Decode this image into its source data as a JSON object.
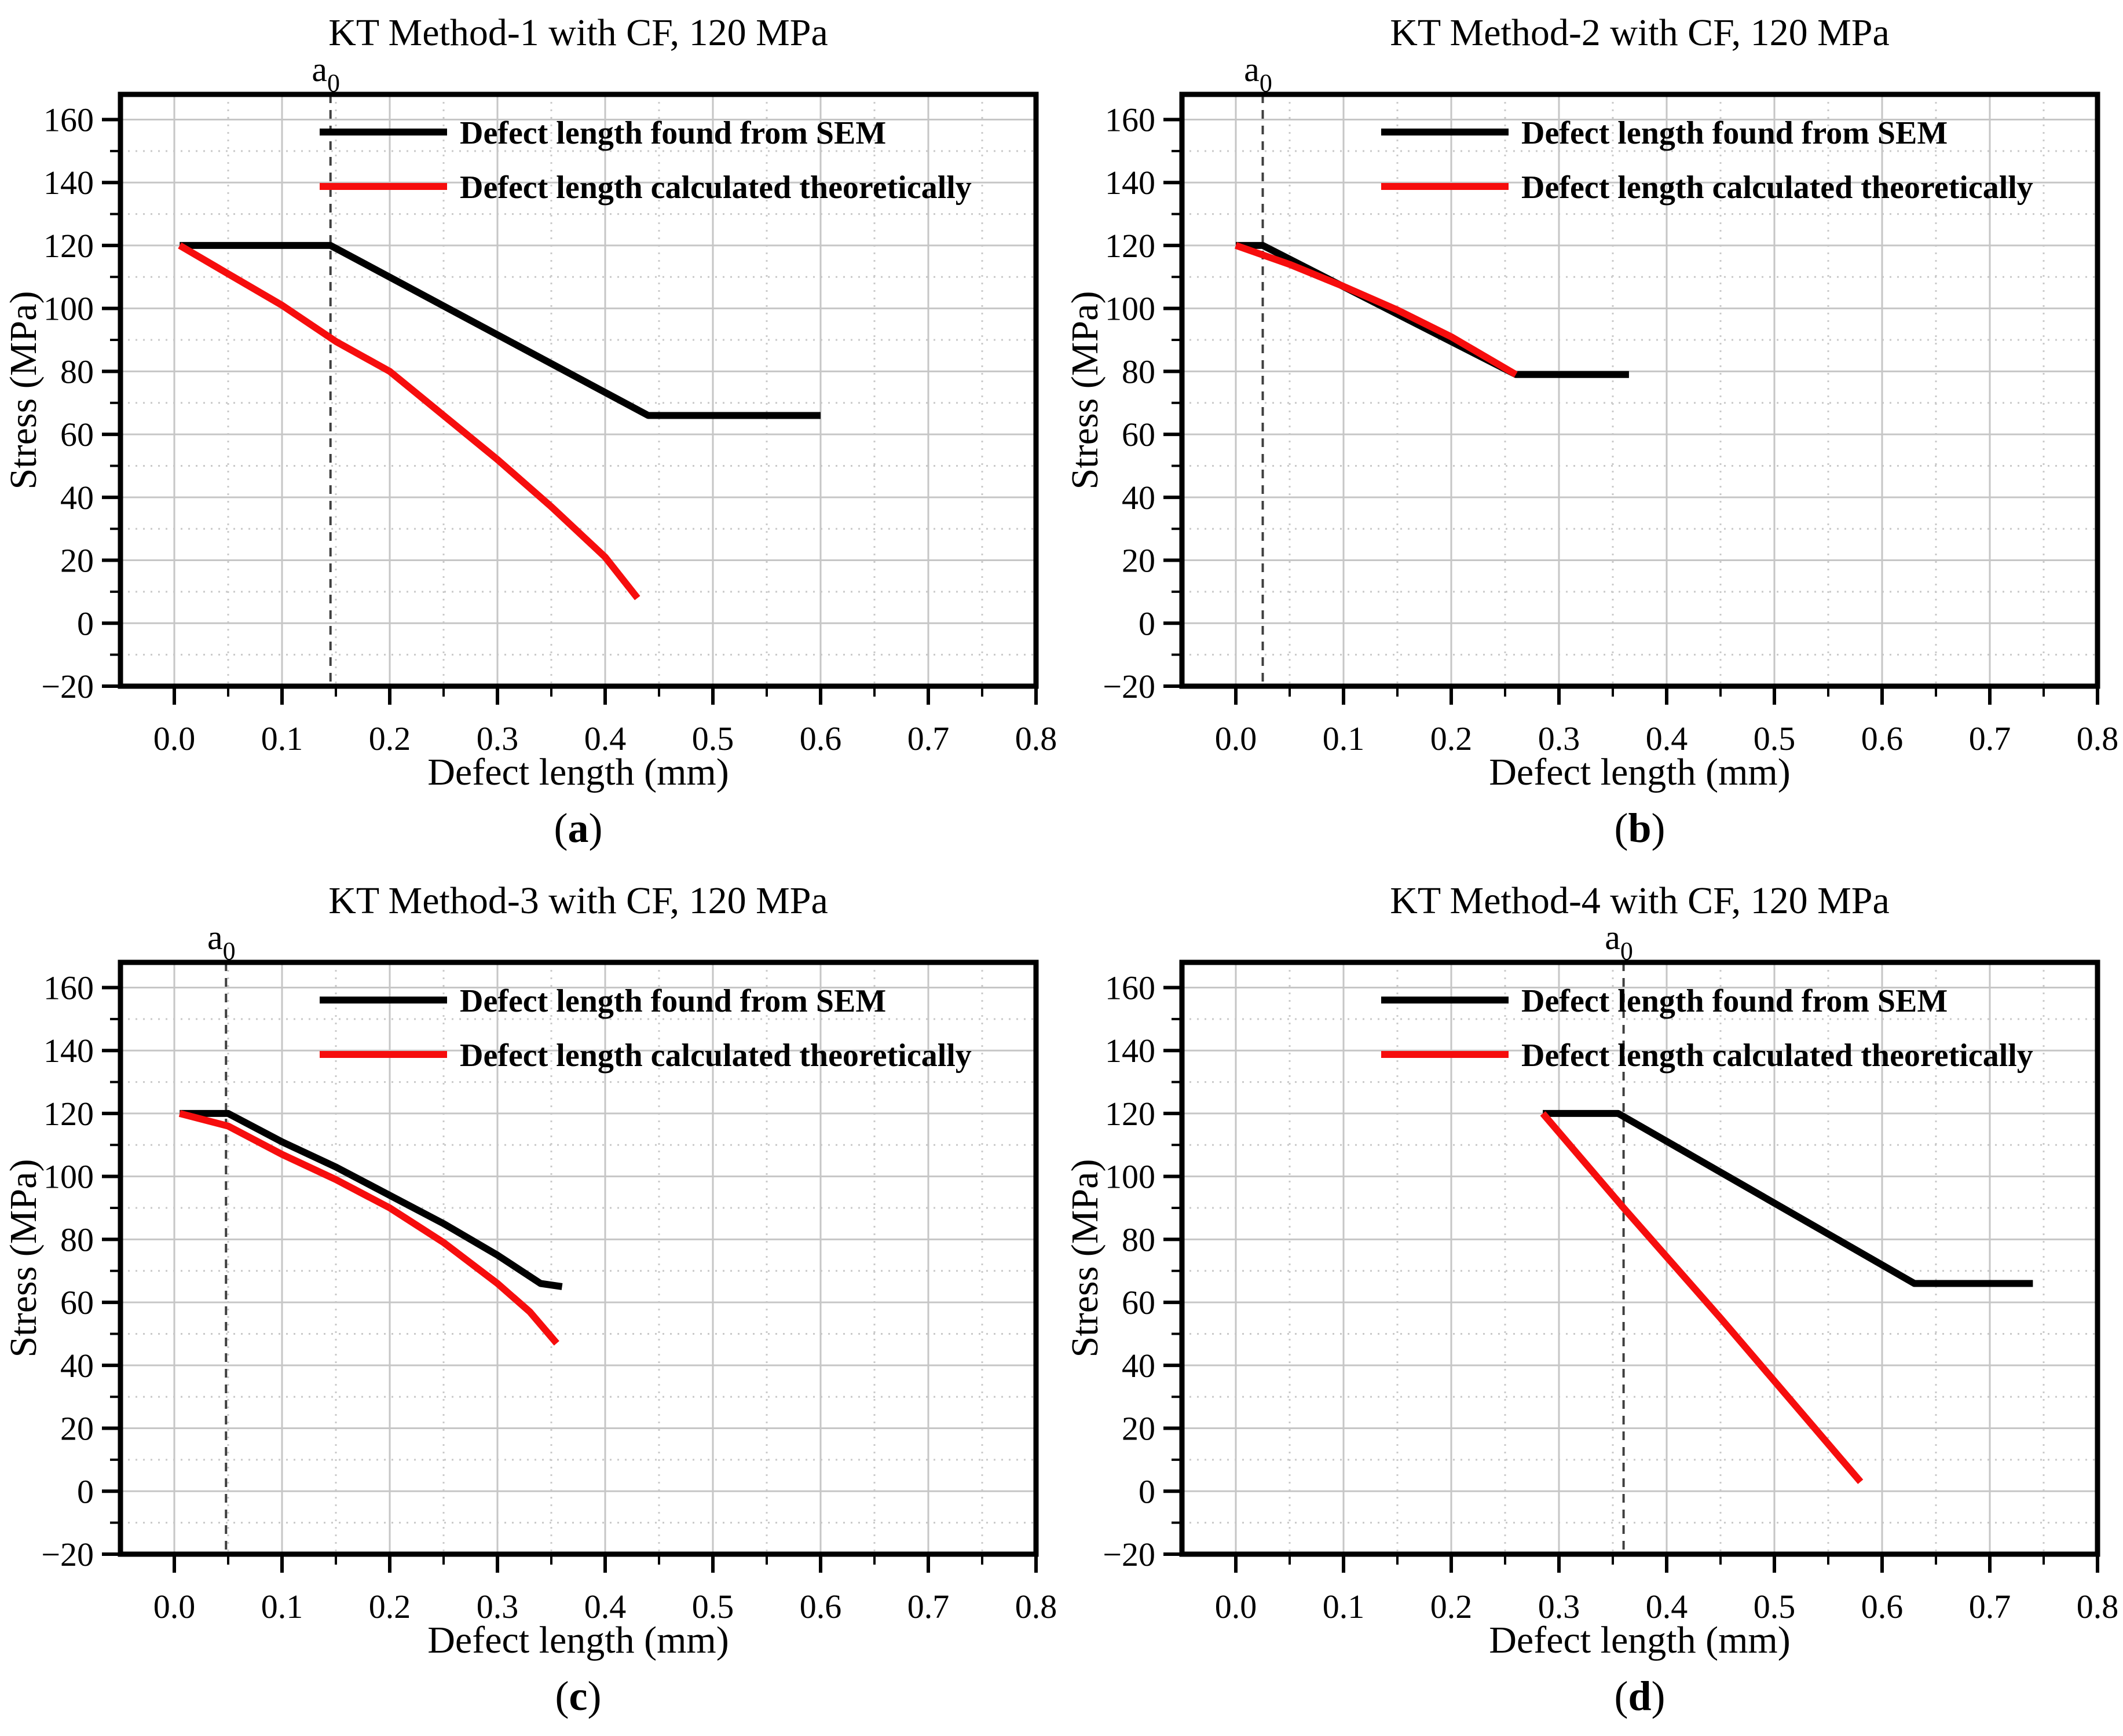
{
  "figure": {
    "ylabel": "Stress (MPa)",
    "xlabel": "Defect length (mm)",
    "legend": [
      "Defect length found from SEM",
      "Defect length calculated theoretically"
    ],
    "a0_annotation": {
      "base": "a",
      "sub": "0"
    }
  },
  "style": {
    "series_sem_color": "#000000",
    "series_theory_color": "#f60d0d",
    "grid_major_color": "#c6c6c6",
    "grid_minor_color": "#c9c9c9",
    "a0_line_color": "#3f3f3f",
    "axis_color": "#000000"
  },
  "chart_data": [
    {
      "type": "line",
      "title": "KT Method-1 with CF, 120 MPa",
      "caption": {
        "open": "(",
        "letter": "a",
        "close": ")"
      },
      "xlabel": "Defect length (mm)",
      "ylabel": "Stress (MPa)",
      "xlim": [
        -0.05,
        0.8
      ],
      "ylim": [
        -20,
        168
      ],
      "grid": true,
      "legend_position": "top-right",
      "xticks": [
        {
          "v": 0.0,
          "label": "0.0"
        },
        {
          "v": 0.1,
          "label": "0.1"
        },
        {
          "v": 0.2,
          "label": "0.2"
        },
        {
          "v": 0.3,
          "label": "0.3"
        },
        {
          "v": 0.4,
          "label": "0.4"
        },
        {
          "v": 0.5,
          "label": "0.5"
        },
        {
          "v": 0.6,
          "label": "0.6"
        },
        {
          "v": 0.7,
          "label": "0.7"
        },
        {
          "v": 0.8,
          "label": "0.8"
        }
      ],
      "yticks": [
        {
          "v": -20,
          "label": "−20"
        },
        {
          "v": 0,
          "label": "0"
        },
        {
          "v": 20,
          "label": "20"
        },
        {
          "v": 40,
          "label": "40"
        },
        {
          "v": 60,
          "label": "60"
        },
        {
          "v": 80,
          "label": "80"
        },
        {
          "v": 100,
          "label": "100"
        },
        {
          "v": 120,
          "label": "120"
        },
        {
          "v": 140,
          "label": "140"
        },
        {
          "v": 160,
          "label": "160"
        }
      ],
      "xminor_step": 0.05,
      "yminor_step": 10,
      "a0": {
        "x": 0.145,
        "base": "a",
        "sub": "0"
      },
      "series": [
        {
          "name": "Defect length found from SEM",
          "color": "#000000",
          "points": [
            [
              0.005,
              120
            ],
            [
              0.145,
              120
            ],
            [
              0.44,
              66
            ],
            [
              0.6,
              66
            ]
          ]
        },
        {
          "name": "Defect length calculated theoretically",
          "color": "#f60d0d",
          "points": [
            [
              0.005,
              120
            ],
            [
              0.05,
              111
            ],
            [
              0.1,
              101
            ],
            [
              0.15,
              89.5
            ],
            [
              0.2,
              80
            ],
            [
              0.25,
              66
            ],
            [
              0.3,
              52
            ],
            [
              0.35,
              37
            ],
            [
              0.4,
              21
            ],
            [
              0.43,
              8
            ]
          ]
        }
      ]
    },
    {
      "type": "line",
      "title": "KT Method-2 with CF, 120 MPa",
      "caption": {
        "open": "(",
        "letter": "b",
        "close": ")"
      },
      "xlabel": "Defect length (mm)",
      "ylabel": "Stress (MPa)",
      "xlim": [
        -0.05,
        0.8
      ],
      "ylim": [
        -20,
        168
      ],
      "grid": true,
      "legend_position": "top-right",
      "xticks": [
        {
          "v": 0.0,
          "label": "0.0"
        },
        {
          "v": 0.1,
          "label": "0.1"
        },
        {
          "v": 0.2,
          "label": "0.2"
        },
        {
          "v": 0.3,
          "label": "0.3"
        },
        {
          "v": 0.4,
          "label": "0.4"
        },
        {
          "v": 0.5,
          "label": "0.5"
        },
        {
          "v": 0.6,
          "label": "0.6"
        },
        {
          "v": 0.7,
          "label": "0.7"
        },
        {
          "v": 0.8,
          "label": "0.8"
        }
      ],
      "yticks": [
        {
          "v": -20,
          "label": "−20"
        },
        {
          "v": 0,
          "label": "0"
        },
        {
          "v": 20,
          "label": "20"
        },
        {
          "v": 40,
          "label": "40"
        },
        {
          "v": 60,
          "label": "60"
        },
        {
          "v": 80,
          "label": "80"
        },
        {
          "v": 100,
          "label": "100"
        },
        {
          "v": 120,
          "label": "120"
        },
        {
          "v": 140,
          "label": "140"
        },
        {
          "v": 160,
          "label": "160"
        }
      ],
      "xminor_step": 0.05,
      "yminor_step": 10,
      "a0": {
        "x": 0.025,
        "base": "a",
        "sub": "0"
      },
      "series": [
        {
          "name": "Defect length found from SEM",
          "color": "#000000",
          "points": [
            [
              0.0,
              120
            ],
            [
              0.025,
              120
            ],
            [
              0.26,
              79
            ],
            [
              0.365,
              79
            ]
          ]
        },
        {
          "name": "Defect length calculated theoretically",
          "color": "#f60d0d",
          "points": [
            [
              0.0,
              120
            ],
            [
              0.05,
              114
            ],
            [
              0.1,
              107
            ],
            [
              0.15,
              99.5
            ],
            [
              0.2,
              91
            ],
            [
              0.26,
              79
            ]
          ]
        }
      ]
    },
    {
      "type": "line",
      "title": "KT Method-3 with CF, 120 MPa",
      "caption": {
        "open": "(",
        "letter": "c",
        "close": ")"
      },
      "xlabel": "Defect length (mm)",
      "ylabel": "Stress (MPa)",
      "xlim": [
        -0.05,
        0.8
      ],
      "ylim": [
        -20,
        168
      ],
      "grid": true,
      "legend_position": "top-right",
      "xticks": [
        {
          "v": 0.0,
          "label": "0.0"
        },
        {
          "v": 0.1,
          "label": "0.1"
        },
        {
          "v": 0.2,
          "label": "0.2"
        },
        {
          "v": 0.3,
          "label": "0.3"
        },
        {
          "v": 0.4,
          "label": "0.4"
        },
        {
          "v": 0.5,
          "label": "0.5"
        },
        {
          "v": 0.6,
          "label": "0.6"
        },
        {
          "v": 0.7,
          "label": "0.7"
        },
        {
          "v": 0.8,
          "label": "0.8"
        }
      ],
      "yticks": [
        {
          "v": -20,
          "label": "−20"
        },
        {
          "v": 0,
          "label": "0"
        },
        {
          "v": 20,
          "label": "20"
        },
        {
          "v": 40,
          "label": "40"
        },
        {
          "v": 60,
          "label": "60"
        },
        {
          "v": 80,
          "label": "80"
        },
        {
          "v": 100,
          "label": "100"
        },
        {
          "v": 120,
          "label": "120"
        },
        {
          "v": 140,
          "label": "140"
        },
        {
          "v": 160,
          "label": "160"
        }
      ],
      "xminor_step": 0.05,
      "yminor_step": 10,
      "a0": {
        "x": 0.048,
        "base": "a",
        "sub": "0"
      },
      "series": [
        {
          "name": "Defect length found from SEM",
          "color": "#000000",
          "points": [
            [
              0.005,
              120
            ],
            [
              0.05,
              120
            ],
            [
              0.1,
              111
            ],
            [
              0.15,
              103
            ],
            [
              0.2,
              94
            ],
            [
              0.25,
              85
            ],
            [
              0.3,
              75
            ],
            [
              0.34,
              66
            ],
            [
              0.36,
              65
            ]
          ]
        },
        {
          "name": "Defect length calculated theoretically",
          "color": "#f60d0d",
          "points": [
            [
              0.005,
              120
            ],
            [
              0.05,
              116
            ],
            [
              0.1,
              107
            ],
            [
              0.15,
              99
            ],
            [
              0.2,
              90
            ],
            [
              0.25,
              79
            ],
            [
              0.3,
              66
            ],
            [
              0.33,
              57
            ],
            [
              0.355,
              47
            ]
          ]
        }
      ]
    },
    {
      "type": "line",
      "title": "KT Method-4 with CF, 120 MPa",
      "caption": {
        "open": "(",
        "letter": "d",
        "close": ")"
      },
      "xlabel": "Defect length (mm)",
      "ylabel": "Stress (MPa)",
      "xlim": [
        -0.05,
        0.8
      ],
      "ylim": [
        -20,
        168
      ],
      "grid": true,
      "legend_position": "top-right",
      "xticks": [
        {
          "v": 0.0,
          "label": "0.0"
        },
        {
          "v": 0.1,
          "label": "0.1"
        },
        {
          "v": 0.2,
          "label": "0.2"
        },
        {
          "v": 0.3,
          "label": "0.3"
        },
        {
          "v": 0.4,
          "label": "0.4"
        },
        {
          "v": 0.5,
          "label": "0.5"
        },
        {
          "v": 0.6,
          "label": "0.6"
        },
        {
          "v": 0.7,
          "label": "0.7"
        },
        {
          "v": 0.8,
          "label": "0.8"
        }
      ],
      "yticks": [
        {
          "v": -20,
          "label": "−20"
        },
        {
          "v": 0,
          "label": "0"
        },
        {
          "v": 20,
          "label": "20"
        },
        {
          "v": 40,
          "label": "40"
        },
        {
          "v": 60,
          "label": "60"
        },
        {
          "v": 80,
          "label": "80"
        },
        {
          "v": 100,
          "label": "100"
        },
        {
          "v": 120,
          "label": "120"
        },
        {
          "v": 140,
          "label": "140"
        },
        {
          "v": 160,
          "label": "160"
        }
      ],
      "xminor_step": 0.05,
      "yminor_step": 10,
      "a0": {
        "x": 0.36,
        "base": "a",
        "sub": "0"
      },
      "series": [
        {
          "name": "Defect length found from SEM",
          "color": "#000000",
          "points": [
            [
              0.285,
              120
            ],
            [
              0.355,
              120
            ],
            [
              0.63,
              66
            ],
            [
              0.74,
              66
            ]
          ]
        },
        {
          "name": "Defect length calculated theoretically",
          "color": "#f60d0d",
          "points": [
            [
              0.285,
              120
            ],
            [
              0.36,
              90
            ],
            [
              0.45,
              55
            ],
            [
              0.52,
              27
            ],
            [
              0.58,
              3
            ]
          ]
        }
      ]
    }
  ]
}
